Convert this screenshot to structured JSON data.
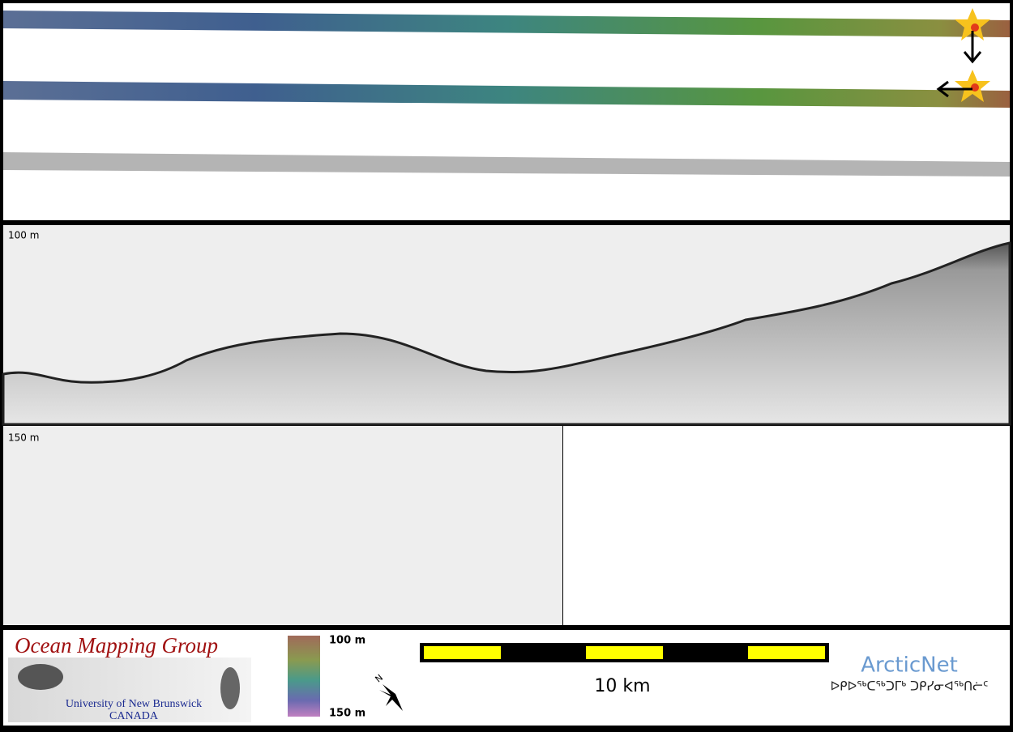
{
  "profile": {
    "upper_depth_label": "100 m",
    "lower_depth_label": "150 m"
  },
  "legend": {
    "top_label": "100 m",
    "bottom_label": "150 m"
  },
  "scale_bar": {
    "label": "10 km"
  },
  "compass": {
    "label": "N"
  },
  "logo_omg": {
    "title": "Ocean Mapping Group",
    "university": "University of New Brunswick",
    "country": "CANADA"
  },
  "logo_arcticnet": {
    "title": "ArcticNet",
    "subtitle": "ᐅᑭᐅᖅᑕᖅᑐᒥᒃ ᑐᑭᓯᓂᐊᖅᑎᓖᑦ"
  }
}
